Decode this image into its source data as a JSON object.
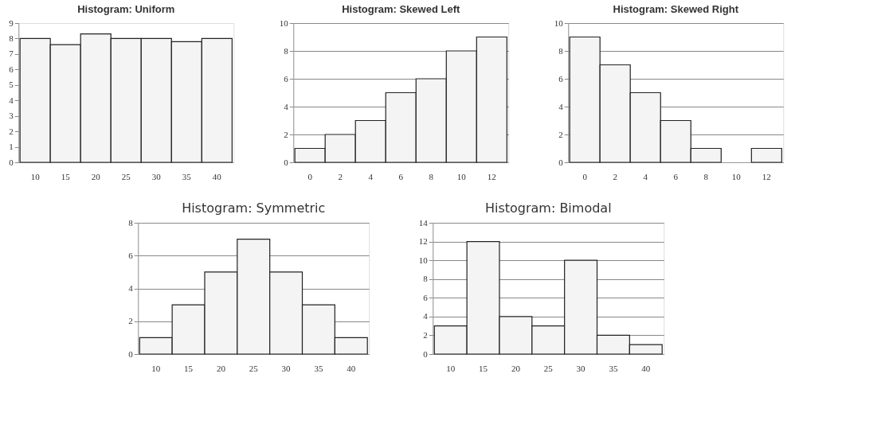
{
  "chart_data": [
    {
      "type": "bar",
      "title": "Histogram: Uniform",
      "categories": [
        "10",
        "15",
        "20",
        "25",
        "30",
        "35",
        "40"
      ],
      "values": [
        8,
        7.6,
        8.3,
        8,
        8,
        7.8,
        8
      ],
      "color": "#f4f4f4",
      "ylim": [
        0,
        9
      ],
      "yticks": [
        0,
        1,
        2,
        3,
        4,
        5,
        6,
        7,
        8,
        9
      ],
      "grid": false
    },
    {
      "type": "bar",
      "title": "Histogram: Skewed Left",
      "categories": [
        "0",
        "2",
        "4",
        "6",
        "8",
        "10",
        "12"
      ],
      "values": [
        1,
        2,
        3,
        5,
        6,
        8,
        9
      ],
      "color": "#f4f4f4",
      "ylim": [
        0,
        10
      ],
      "yticks": [
        0,
        2,
        4,
        6,
        8,
        10
      ],
      "grid": "y"
    },
    {
      "type": "bar",
      "title": "Histogram: Skewed Right",
      "categories": [
        "0",
        "2",
        "4",
        "6",
        "8",
        "10",
        "12"
      ],
      "values": [
        9,
        7,
        5,
        3,
        1,
        null,
        1
      ],
      "color": "#f4f4f4",
      "ylim": [
        0,
        10
      ],
      "yticks": [
        0,
        2,
        4,
        6,
        8,
        10
      ],
      "grid": "y"
    },
    {
      "type": "bar",
      "title": "Histogram: Symmetric",
      "categories": [
        "10",
        "15",
        "20",
        "25",
        "30",
        "35",
        "40"
      ],
      "values": [
        1,
        3,
        5,
        7,
        5,
        3,
        1
      ],
      "color": "#f4f4f4",
      "ylim": [
        0,
        8
      ],
      "yticks": [
        0,
        2,
        4,
        6,
        8
      ],
      "grid": "y"
    },
    {
      "type": "bar",
      "title": "Histogram: Bimodal",
      "categories": [
        "10",
        "15",
        "20",
        "25",
        "30",
        "35",
        "40"
      ],
      "values": [
        3,
        12,
        4,
        3,
        10,
        2,
        1
      ],
      "color": "#f4f4f4",
      "ylim": [
        0,
        14
      ],
      "yticks": [
        0,
        2,
        4,
        6,
        8,
        10,
        12,
        14
      ],
      "grid": "y"
    }
  ]
}
